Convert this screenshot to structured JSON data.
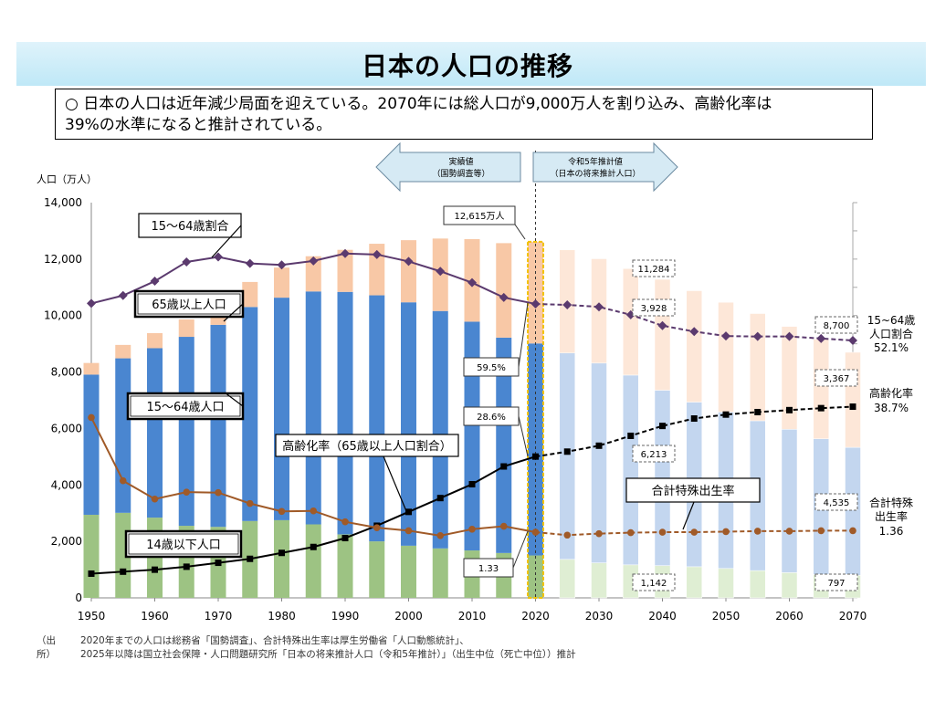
{
  "page": {
    "title": "日本の人口の推移",
    "summary_line1": "○ 日本の人口は近年減少局面を迎えている。2070年には総人口が9,000万人を割り込み、高齢化率は",
    "summary_line2": "39%の水準になると推計されている。",
    "source_label": "（出所）",
    "source_lines": [
      "2020年までの人口は総務省「国勢調査」、合計特殊出生率は厚生労働省「人口動態統計」、",
      "2025年以降は国立社会保障・人口問題研究所「日本の将来推計人口（令和5年推計）」（出生中位（死亡中位））推計"
    ]
  },
  "chart_data": {
    "type": "bar",
    "stacked": true,
    "ylabel": "人口（万人）",
    "ylim": [
      0,
      14000
    ],
    "yticks": [
      0,
      2000,
      4000,
      6000,
      8000,
      10000,
      12000,
      14000
    ],
    "ytick_labels": [
      "0",
      "2,000",
      "4,000",
      "6,000",
      "8,000",
      "10,000",
      "12,000",
      "14,000"
    ],
    "x": [
      1950,
      1955,
      1960,
      1965,
      1970,
      1975,
      1980,
      1985,
      1990,
      1995,
      2000,
      2005,
      2010,
      2015,
      2020,
      2025,
      2030,
      2035,
      2040,
      2045,
      2050,
      2055,
      2060,
      2065,
      2070
    ],
    "xtick_labels": [
      "1950",
      "1960",
      "1970",
      "1980",
      "1990",
      "2000",
      "2010",
      "2020",
      "2030",
      "2040",
      "2050",
      "2060",
      "2070"
    ],
    "projection_start": 2025,
    "highlight_year": 2020,
    "series": [
      {
        "name": "14歳以下人口",
        "color": "#9dc383",
        "color_projected": "#dfeed3",
        "values": [
          2943,
          3012,
          2843,
          2553,
          2515,
          2722,
          2751,
          2603,
          2249,
          2001,
          1847,
          1752,
          1680,
          1589,
          1503,
          1363,
          1240,
          1169,
          1142,
          1103,
          1041,
          966,
          893,
          825,
          797
        ]
      },
      {
        "name": "15～64歳人口",
        "color": "#4a86d0",
        "color_projected": "#c3d6ef",
        "values": [
          4966,
          5473,
          6000,
          6693,
          7157,
          7581,
          7883,
          8251,
          8590,
          8716,
          8622,
          8409,
          8103,
          7629,
          7509,
          7310,
          7076,
          6722,
          6213,
          5832,
          5540,
          5307,
          5078,
          4809,
          4535
        ]
      },
      {
        "name": "65歳以上人口",
        "color": "#f8c8a6",
        "color_projected": "#fde7d8",
        "values": [
          411,
          475,
          535,
          618,
          733,
          887,
          1065,
          1247,
          1489,
          1826,
          2201,
          2567,
          2925,
          3347,
          3603,
          3653,
          3696,
          3773,
          3928,
          3945,
          3888,
          3798,
          3644,
          3532,
          3367
        ]
      }
    ],
    "lines": [
      {
        "name": "15～64歳割合",
        "axis": "right-pct",
        "unit": "%",
        "color": "#5b3a6e",
        "values": [
          59.6,
          61.2,
          64.1,
          68.0,
          69.0,
          67.7,
          67.4,
          68.2,
          69.7,
          69.5,
          68.1,
          66.1,
          63.8,
          60.8,
          59.5,
          59.3,
          58.9,
          57.3,
          55.1,
          53.9,
          53.0,
          52.9,
          52.9,
          52.5,
          52.1
        ]
      },
      {
        "name": "高齢化率（65歳以上人口割合）",
        "axis": "right-pct",
        "unit": "%",
        "color": "#000000",
        "values": [
          4.9,
          5.3,
          5.7,
          6.3,
          7.1,
          7.9,
          9.1,
          10.3,
          12.1,
          14.6,
          17.4,
          20.2,
          23.0,
          26.6,
          28.6,
          29.6,
          30.8,
          32.8,
          34.8,
          36.3,
          37.1,
          37.6,
          38.0,
          38.4,
          38.7
        ]
      },
      {
        "name": "合計特殊出生率",
        "axis": "right-tfr",
        "color": "#a05a28",
        "values": [
          3.65,
          2.37,
          2.0,
          2.14,
          2.13,
          1.91,
          1.75,
          1.76,
          1.54,
          1.42,
          1.36,
          1.26,
          1.39,
          1.45,
          1.33,
          1.27,
          1.3,
          1.32,
          1.33,
          1.33,
          1.34,
          1.35,
          1.35,
          1.36,
          1.36
        ]
      }
    ],
    "arrows": {
      "actual": "実績値",
      "actual_sub": "（国勢調査等）",
      "projection": "令和5年推計値",
      "projection_sub": "（日本の将来推計人口）"
    },
    "annotations": {
      "total_2020": "12,615万人",
      "ratio_1564_2020": "59.5%",
      "aging_2020": "28.6%",
      "tfr_2020": "1.33",
      "total_2070": "8,700",
      "s65_2070": "3,367",
      "s1564_2070": "4,535",
      "s014_2070": "797",
      "total_2040": "11,284",
      "s65_2040": "3,928",
      "s1564_2040": "6,213",
      "s014_2040": "1,142"
    },
    "callouts": {
      "ratio_1564": "15～64歳割合",
      "over65": "65歳以上人口",
      "pop1564": "15～64歳人口",
      "aging": "高齢化率（65歳以上人口割合）",
      "tfr": "合計特殊出生率",
      "under14": "14歳以下人口"
    },
    "right_labels": {
      "ratio_name_1": "15~64歳",
      "ratio_name_2": "人口割合",
      "ratio_value": "52.1%",
      "aging_name": "高齢化率",
      "aging_value": "38.7%",
      "tfr_name_1": "合計特殊",
      "tfr_name_2": "出生率",
      "tfr_value": "1.36"
    }
  }
}
